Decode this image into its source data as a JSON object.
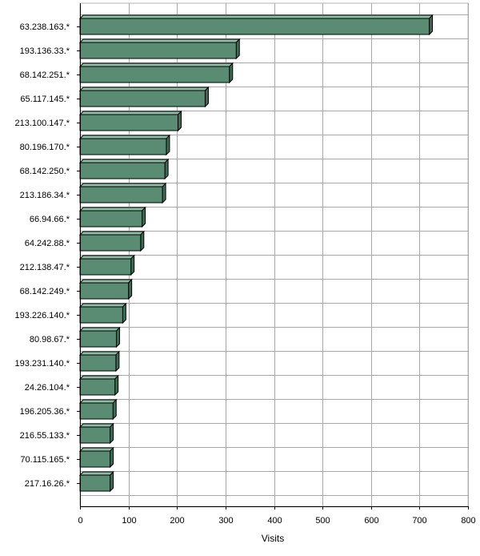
{
  "chart_data": {
    "type": "bar",
    "orientation": "horizontal",
    "title": "",
    "xlabel": "Visits",
    "ylabel": "",
    "xlim": [
      0,
      800
    ],
    "x_ticks": [
      0,
      100,
      200,
      300,
      400,
      500,
      600,
      700,
      800
    ],
    "grid": true,
    "bar_color": "#5a8c74",
    "categories": [
      "63.238.163.*",
      "193.136.33.*",
      "68.142.251.*",
      "65.117.145.*",
      "213.100.147.*",
      "80.196.170.*",
      "68.142.250.*",
      "213.186.34.*",
      "66.94.66.*",
      "64.242.88.*",
      "212.138.47.*",
      "68.142.249.*",
      "193.226.140.*",
      "80.98.67.*",
      "193.231.140.*",
      "24.26.104.*",
      "196.205.36.*",
      "216.55.133.*",
      "70.115.165.*",
      "217.16.26.*"
    ],
    "values": [
      720,
      322,
      308,
      258,
      202,
      178,
      175,
      170,
      128,
      125,
      105,
      100,
      88,
      75,
      74,
      72,
      68,
      62,
      62,
      62
    ]
  }
}
